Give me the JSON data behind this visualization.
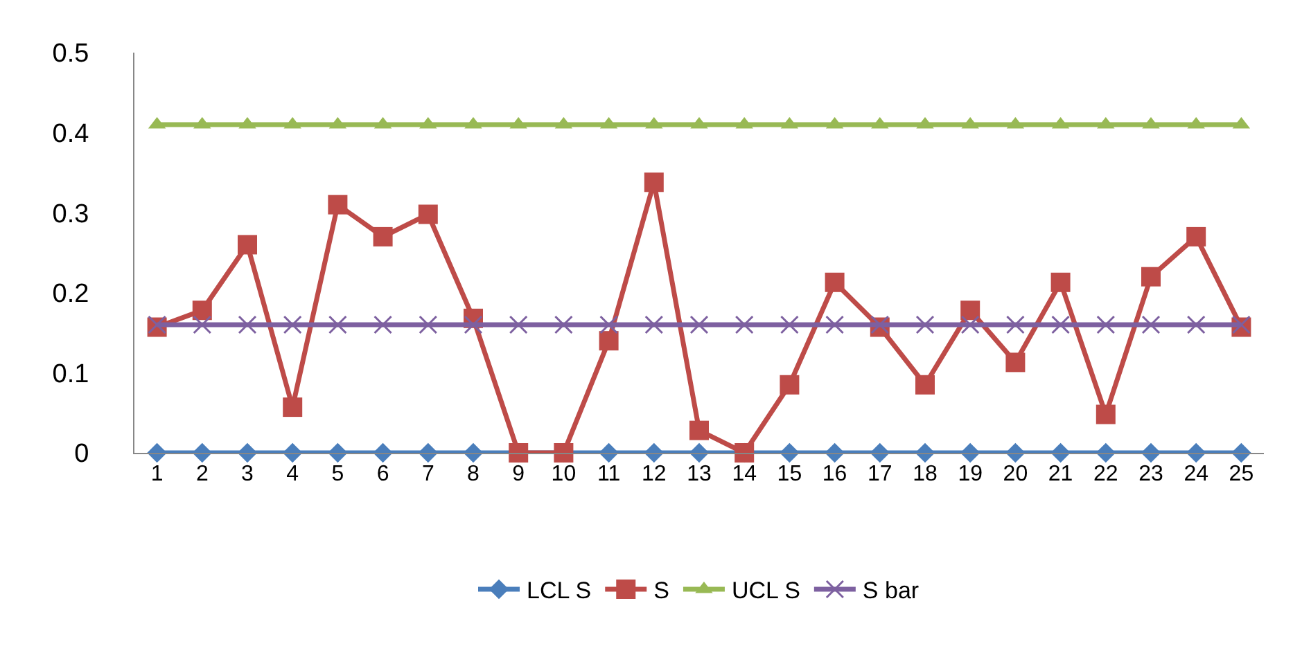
{
  "chart_data": {
    "type": "line",
    "categories": [
      "1",
      "2",
      "3",
      "4",
      "5",
      "6",
      "7",
      "8",
      "9",
      "10",
      "11",
      "12",
      "13",
      "14",
      "15",
      "16",
      "17",
      "18",
      "19",
      "20",
      "21",
      "22",
      "23",
      "24",
      "25"
    ],
    "series": [
      {
        "name": "LCL S",
        "color": "#4a7ebb",
        "marker": "diamond",
        "values": [
          0,
          0,
          0,
          0,
          0,
          0,
          0,
          0,
          0,
          0,
          0,
          0,
          0,
          0,
          0,
          0,
          0,
          0,
          0,
          0,
          0,
          0,
          0,
          0,
          0
        ]
      },
      {
        "name": "S",
        "color": "#be4b48",
        "marker": "square",
        "values": [
          0.157,
          0.178,
          0.26,
          0.057,
          0.31,
          0.27,
          0.298,
          0.168,
          0,
          0,
          0.14,
          0.338,
          0.028,
          0,
          0.085,
          0.213,
          0.157,
          0.085,
          0.178,
          0.113,
          0.213,
          0.048,
          0.22,
          0.27,
          0.157
        ]
      },
      {
        "name": "UCL S",
        "color": "#98b954",
        "marker": "triangle",
        "values": [
          0.41,
          0.41,
          0.41,
          0.41,
          0.41,
          0.41,
          0.41,
          0.41,
          0.41,
          0.41,
          0.41,
          0.41,
          0.41,
          0.41,
          0.41,
          0.41,
          0.41,
          0.41,
          0.41,
          0.41,
          0.41,
          0.41,
          0.41,
          0.41,
          0.41
        ]
      },
      {
        "name": "S bar",
        "color": "#7d60a0",
        "marker": "cross",
        "values": [
          0.16,
          0.16,
          0.16,
          0.16,
          0.16,
          0.16,
          0.16,
          0.16,
          0.16,
          0.16,
          0.16,
          0.16,
          0.16,
          0.16,
          0.16,
          0.16,
          0.16,
          0.16,
          0.16,
          0.16,
          0.16,
          0.16,
          0.16,
          0.16,
          0.16
        ]
      }
    ],
    "ylim": [
      0,
      0.5
    ],
    "yticks": [
      0,
      0.1,
      0.2,
      0.3,
      0.4,
      0.5
    ],
    "legend": "bottom",
    "line_style": "solid"
  }
}
